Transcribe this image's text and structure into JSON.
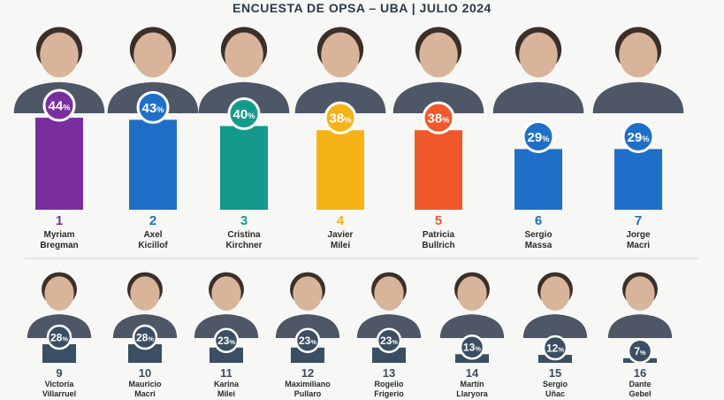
{
  "chart_data": {
    "type": "bar",
    "title": "ENCUESTA DE OPSA – UBA | JULIO 2024",
    "ylim": [
      0,
      45
    ],
    "grid": false,
    "legend": "none",
    "value_suffix": "%",
    "rows": [
      {
        "bars": [
          {
            "rank": "1",
            "first": "Myriam",
            "last": "Bregman",
            "value": 44,
            "label": "44%",
            "color": "#7a2e9e"
          },
          {
            "rank": "2",
            "first": "Axel",
            "last": "Kicillof",
            "value": 43,
            "label": "43%",
            "color": "#1f6fc8"
          },
          {
            "rank": "3",
            "first": "Cristina",
            "last": "Kirchner",
            "value": 40,
            "label": "40%",
            "color": "#139a8a"
          },
          {
            "rank": "4",
            "first": "Javier",
            "last": "Milei",
            "value": 38,
            "label": "38%",
            "color": "#f5b318"
          },
          {
            "rank": "5",
            "first": "Patricia",
            "last": "Bullrich",
            "value": 38,
            "label": "38%",
            "color": "#f0582a"
          },
          {
            "rank": "6",
            "first": "Sergio",
            "last": "Massa",
            "value": 29,
            "label": "29%",
            "color": "#1f6fc8"
          },
          {
            "rank": "7",
            "first": "Jorge",
            "last": "Macri",
            "value": 29,
            "label": "29%",
            "color": "#1f6fc8"
          }
        ]
      },
      {
        "bars": [
          {
            "rank": "9",
            "first": "Victoria",
            "last": "Villarruel",
            "value": 28,
            "label": "28%",
            "color": "#3a4f63"
          },
          {
            "rank": "10",
            "first": "Mauricio",
            "last": "Macri",
            "value": 28,
            "label": "28%",
            "color": "#3a4f63"
          },
          {
            "rank": "11",
            "first": "Karina",
            "last": "Milei",
            "value": 23,
            "label": "23%",
            "color": "#3a4f63"
          },
          {
            "rank": "12",
            "first": "Maximiliano",
            "last": "Pullaro",
            "value": 23,
            "label": "23%",
            "color": "#3a4f63"
          },
          {
            "rank": "13",
            "first": "Rogelio",
            "last": "Frigerio",
            "value": 23,
            "label": "23%",
            "color": "#3a4f63"
          },
          {
            "rank": "14",
            "first": "Martín",
            "last": "Llaryora",
            "value": 13,
            "label": "13%",
            "color": "#3a4f63"
          },
          {
            "rank": "15",
            "first": "Sergio",
            "last": "Uñac",
            "value": 12,
            "label": "12%",
            "color": "#3a4f63"
          },
          {
            "rank": "16",
            "first": "Dante",
            "last": "Gebel",
            "value": 7,
            "label": "7%",
            "color": "#3a4f63"
          }
        ]
      }
    ]
  },
  "colors": {
    "rank_text": "#2a2a2a",
    "name_text": "#2a2a2a",
    "portrait_bg": "#d9d9d6",
    "portrait_skin": "#d7b49a",
    "portrait_hair": "#3b2f2a",
    "suit": "#2f3b4c",
    "row2_badge": "#3a4f63",
    "divider": "#cfcfcf"
  }
}
